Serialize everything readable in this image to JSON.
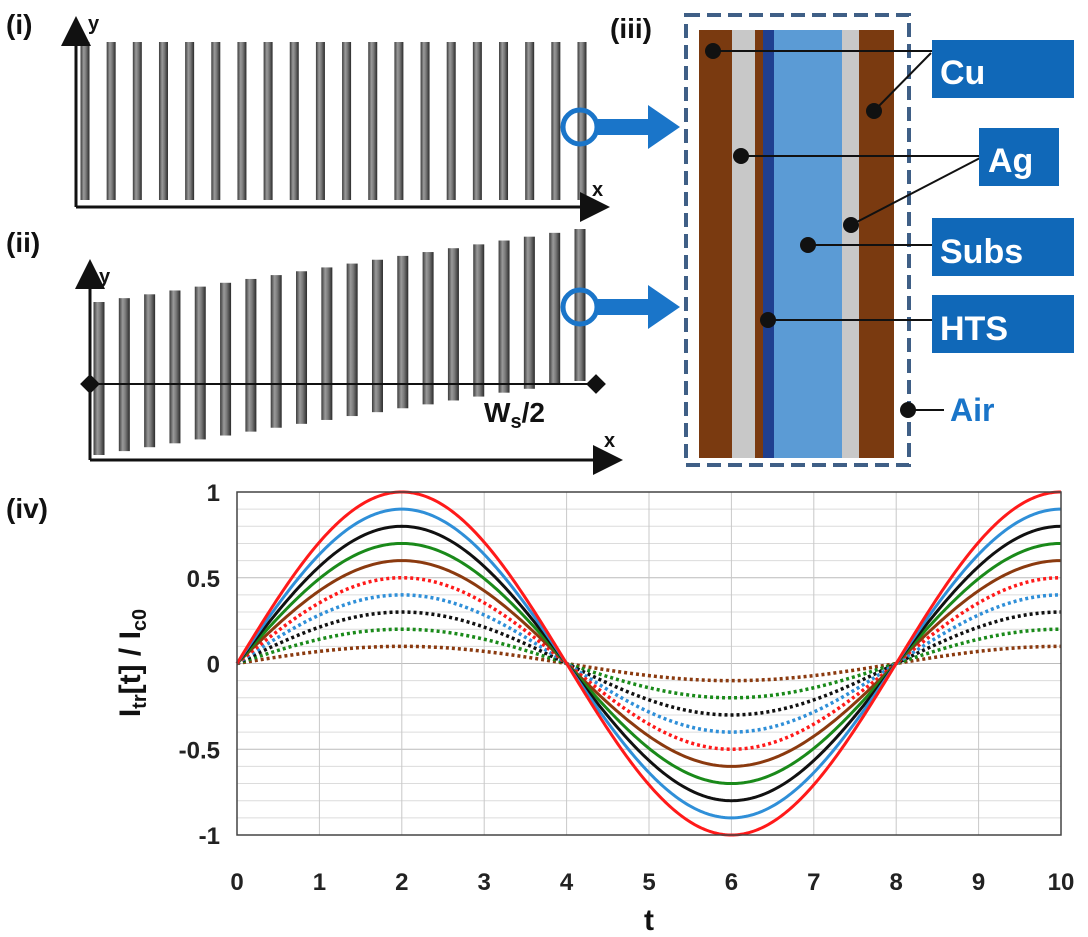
{
  "labels": {
    "panel_i": "(i)",
    "panel_ii": "(ii)",
    "panel_iii": "(iii)",
    "panel_iv": "(iv)",
    "x_axis": "x",
    "y_axis": "y",
    "ws_main": "W",
    "ws_sub": "s",
    "ws_tail": "/2"
  },
  "layers": {
    "cu": "Cu",
    "ag": "Ag",
    "subs": "Subs",
    "hts": "HTS",
    "air": "Air"
  },
  "colors": {
    "cu": "#7a3a10",
    "ag": "#c8c8c8",
    "subs": "#5b9bd5",
    "hts": "#1f3f8f",
    "label_box": "#1068b8",
    "arrow": "#1a75c9",
    "dashed_border": "#3f5f86"
  },
  "chart_data": {
    "type": "line",
    "title": "",
    "xlabel": "t",
    "ylabel_main": "I",
    "ylabel_sub": "tr",
    "ylabel_mid": "[t] / I",
    "ylabel_sub2": "c0",
    "xlim": [
      0,
      10
    ],
    "ylim": [
      -1,
      1
    ],
    "xticks": [
      "0",
      "1",
      "2",
      "3",
      "4",
      "5",
      "6",
      "7",
      "8",
      "9",
      "10"
    ],
    "yticks": [
      "1",
      "0.5",
      "0",
      "-0.5",
      "-1"
    ],
    "grid": true,
    "function": "amplitude * sin(2*pi*t/8)",
    "series": [
      {
        "amplitude": 1.0,
        "style": "solid",
        "color": "#ff1a1a"
      },
      {
        "amplitude": 0.9,
        "style": "solid",
        "color": "#2f8fd8"
      },
      {
        "amplitude": 0.8,
        "style": "solid",
        "color": "#111111"
      },
      {
        "amplitude": 0.7,
        "style": "solid",
        "color": "#1a8a1a"
      },
      {
        "amplitude": 0.6,
        "style": "solid",
        "color": "#8b3a0f"
      },
      {
        "amplitude": 0.5,
        "style": "dotted",
        "color": "#ff1a1a"
      },
      {
        "amplitude": 0.4,
        "style": "dotted",
        "color": "#2f8fd8"
      },
      {
        "amplitude": 0.3,
        "style": "dotted",
        "color": "#111111"
      },
      {
        "amplitude": 0.2,
        "style": "dotted",
        "color": "#1a8a1a"
      },
      {
        "amplitude": 0.1,
        "style": "dotted",
        "color": "#8b3a0f"
      }
    ]
  }
}
